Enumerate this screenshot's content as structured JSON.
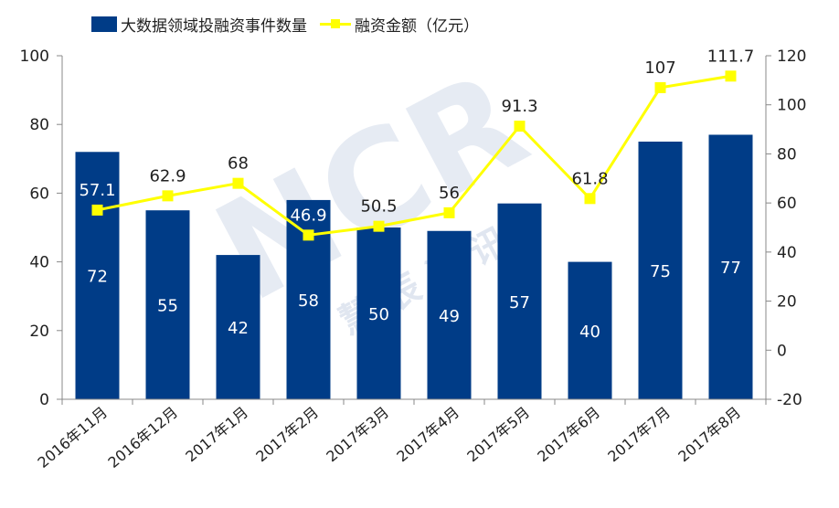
{
  "colors": {
    "bar": "#003c87",
    "line": "#ffff00",
    "marker": "#ffff00",
    "axis": "#888888",
    "text": "#222222",
    "bar_label": "#ffffff",
    "watermark": "#8fa6c8"
  },
  "legend": {
    "bar_label": "大数据领域投融资事件数量",
    "line_label": "融资金额（亿元）"
  },
  "watermark": {
    "large": "NCR",
    "small": "慧 辰 资 讯"
  },
  "chart_data": {
    "type": "bar",
    "categories": [
      "2016年11月",
      "2016年12月",
      "2017年1月",
      "2017年2月",
      "2017年3月",
      "2017年4月",
      "2017年5月",
      "2017年6月",
      "2017年7月",
      "2017年8月"
    ],
    "series": [
      {
        "name": "大数据领域投融资事件数量",
        "type": "bar",
        "axis": "left",
        "values": [
          72,
          55,
          42,
          58,
          50,
          49,
          57,
          40,
          75,
          77
        ]
      },
      {
        "name": "融资金额（亿元）",
        "type": "line",
        "axis": "right",
        "values": [
          57.1,
          62.9,
          68,
          46.9,
          50.5,
          56,
          91.3,
          61.8,
          107,
          111.7
        ]
      }
    ],
    "y_left": {
      "min": 0,
      "max": 100,
      "ticks": [
        0,
        20,
        40,
        60,
        80,
        100
      ]
    },
    "y_right": {
      "min": -20,
      "max": 120,
      "ticks": [
        -20,
        0,
        20,
        40,
        60,
        80,
        100,
        120
      ]
    },
    "grid": false,
    "legend_position": "top-left"
  }
}
